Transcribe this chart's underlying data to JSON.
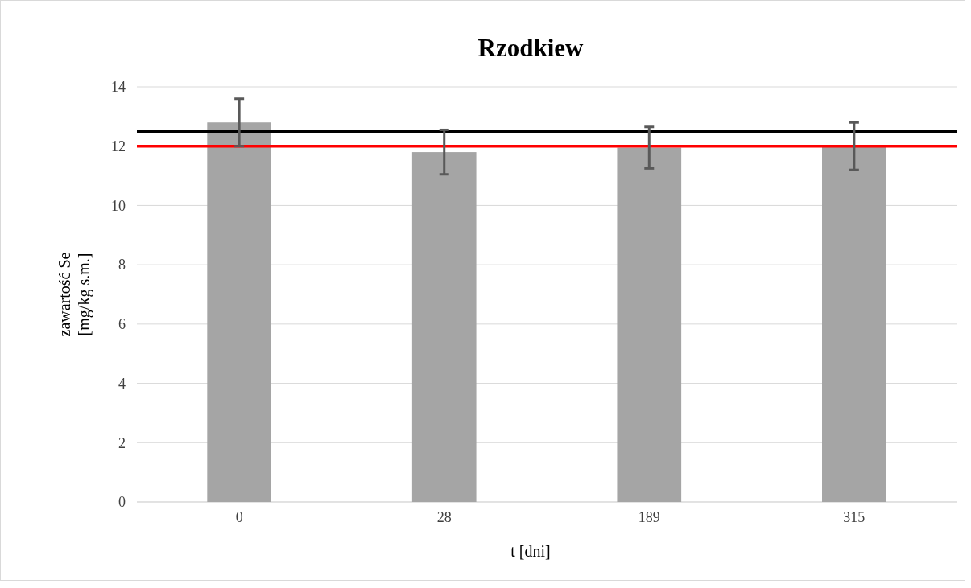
{
  "chart_data": {
    "type": "bar",
    "title": "Rzodkiew",
    "xlabel": "t [dni]",
    "ylabel": "zawartość Se\n[mg/kg s.m.]",
    "categories": [
      "0",
      "28",
      "189",
      "315"
    ],
    "values": [
      12.8,
      11.8,
      11.95,
      12.0
    ],
    "color": "#a5a5a5",
    "errors": [
      0.8,
      0.75,
      0.7,
      0.8
    ],
    "ylim": [
      0,
      14
    ],
    "yticks": [
      0,
      2,
      4,
      6,
      8,
      10,
      12,
      14
    ],
    "grid": "y",
    "ref_lines": [
      {
        "axis": "y",
        "value": 12.5,
        "color": "#000000"
      },
      {
        "axis": "y",
        "value": 12.0,
        "color": "#ff0000"
      }
    ]
  }
}
